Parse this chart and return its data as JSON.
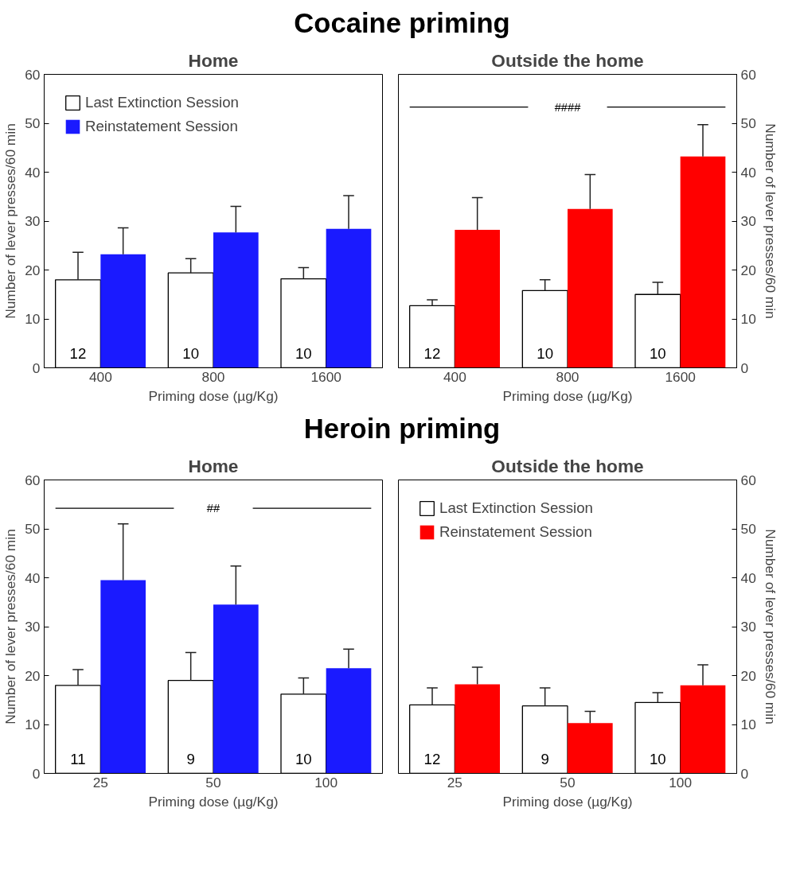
{
  "chart_data": [
    {
      "type": "bar",
      "title": "Cocaine priming",
      "subtitle": "Home",
      "xlabel": "Priming dose (µg/Kg)",
      "ylabel": "Number of lever presses/60 min",
      "categories": [
        "400",
        "800",
        "1600"
      ],
      "ylim": [
        0,
        60
      ],
      "yticks": [
        0,
        10,
        20,
        30,
        40,
        50,
        60
      ],
      "legend": "top left",
      "series": [
        {
          "name": "Last Extinction Session",
          "color": "#ffffff",
          "values": [
            18.0,
            19.4,
            18.2
          ],
          "errors": [
            [
              18.0,
              23.6
            ],
            [
              19.4,
              22.3
            ],
            [
              18.2,
              20.5
            ]
          ]
        },
        {
          "name": "Reinstatement Session",
          "color": "#1a1aff",
          "values": [
            23.2,
            27.7,
            28.4
          ],
          "errors": [
            [
              23.2,
              28.6
            ],
            [
              27.7,
              33.0
            ],
            [
              28.4,
              35.2
            ]
          ]
        }
      ],
      "annotations": [
        {
          "text": "12",
          "x": "400",
          "y": 3
        },
        {
          "text": "10",
          "x": "800",
          "y": 3
        },
        {
          "text": "10",
          "x": "1600",
          "y": 3
        }
      ]
    },
    {
      "type": "bar",
      "subtitle": "Outside the home",
      "xlabel": "Priming dose (µg/Kg)",
      "ylabel": "Number of lever presses/60 min",
      "categories": [
        "400",
        "800",
        "1600"
      ],
      "ylim": [
        0,
        60
      ],
      "yticks": [
        0,
        10,
        20,
        30,
        40,
        50,
        60
      ],
      "series": [
        {
          "color": "#ffffff",
          "values": [
            12.7,
            15.8,
            15.0
          ],
          "errors": [
            [
              12.7,
              13.9
            ],
            [
              15.8,
              18.0
            ],
            [
              15.0,
              17.5
            ]
          ]
        },
        {
          "color": "#ff0000",
          "values": [
            28.2,
            32.5,
            43.2
          ],
          "errors": [
            [
              28.2,
              34.8
            ],
            [
              32.5,
              39.5
            ],
            [
              43.2,
              49.7
            ]
          ]
        }
      ],
      "annotations": [
        {
          "text": "12",
          "x": "400",
          "y": 3
        },
        {
          "text": "10",
          "x": "800",
          "y": 3
        },
        {
          "text": "10",
          "x": "1600",
          "y": 3
        }
      ],
      "ref_lines": [
        {
          "axis": "y",
          "value": 53.3,
          "label": "####"
        }
      ]
    },
    {
      "type": "bar",
      "title": "Heroin priming",
      "subtitle": "Home",
      "xlabel": "Priming dose (µg/Kg)",
      "ylabel": "Number of lever presses/60 min",
      "categories": [
        "25",
        "50",
        "100"
      ],
      "ylim": [
        0,
        60
      ],
      "yticks": [
        0,
        10,
        20,
        30,
        40,
        50,
        60
      ],
      "series": [
        {
          "color": "#ffffff",
          "values": [
            18.0,
            19.0,
            16.2
          ],
          "errors": [
            [
              18.0,
              21.2
            ],
            [
              19.0,
              24.7
            ],
            [
              16.2,
              19.5
            ]
          ]
        },
        {
          "color": "#1a1aff",
          "values": [
            39.5,
            34.5,
            21.5
          ],
          "errors": [
            [
              39.5,
              51.0
            ],
            [
              34.5,
              42.4
            ],
            [
              21.5,
              25.4
            ]
          ]
        }
      ],
      "annotations": [
        {
          "text": "11",
          "x": "25",
          "y": 3
        },
        {
          "text": "9",
          "x": "50",
          "y": 3
        },
        {
          "text": "10",
          "x": "100",
          "y": 3
        }
      ],
      "ref_lines": [
        {
          "axis": "y",
          "value": 54.2,
          "label": "##"
        }
      ]
    },
    {
      "type": "bar",
      "subtitle": "Outside the home",
      "xlabel": "Priming dose (µg/Kg)",
      "ylabel": "Number of lever presses/60 min",
      "categories": [
        "25",
        "50",
        "100"
      ],
      "ylim": [
        0,
        60
      ],
      "yticks": [
        0,
        10,
        20,
        30,
        40,
        50,
        60
      ],
      "legend": "top left",
      "series": [
        {
          "name": "Last Extinction Session",
          "color": "#ffffff",
          "values": [
            14.0,
            13.8,
            14.5
          ],
          "errors": [
            [
              14.0,
              17.5
            ],
            [
              13.8,
              17.5
            ],
            [
              14.5,
              16.5
            ]
          ]
        },
        {
          "name": "Reinstatement Session",
          "color": "#ff0000",
          "values": [
            18.2,
            10.3,
            18.0
          ],
          "errors": [
            [
              18.2,
              21.7
            ],
            [
              10.3,
              12.7
            ],
            [
              18.0,
              22.2
            ]
          ]
        }
      ],
      "annotations": [
        {
          "text": "12",
          "x": "25",
          "y": 3
        },
        {
          "text": "9",
          "x": "50",
          "y": 3
        },
        {
          "text": "10",
          "x": "100",
          "y": 3
        }
      ]
    }
  ]
}
